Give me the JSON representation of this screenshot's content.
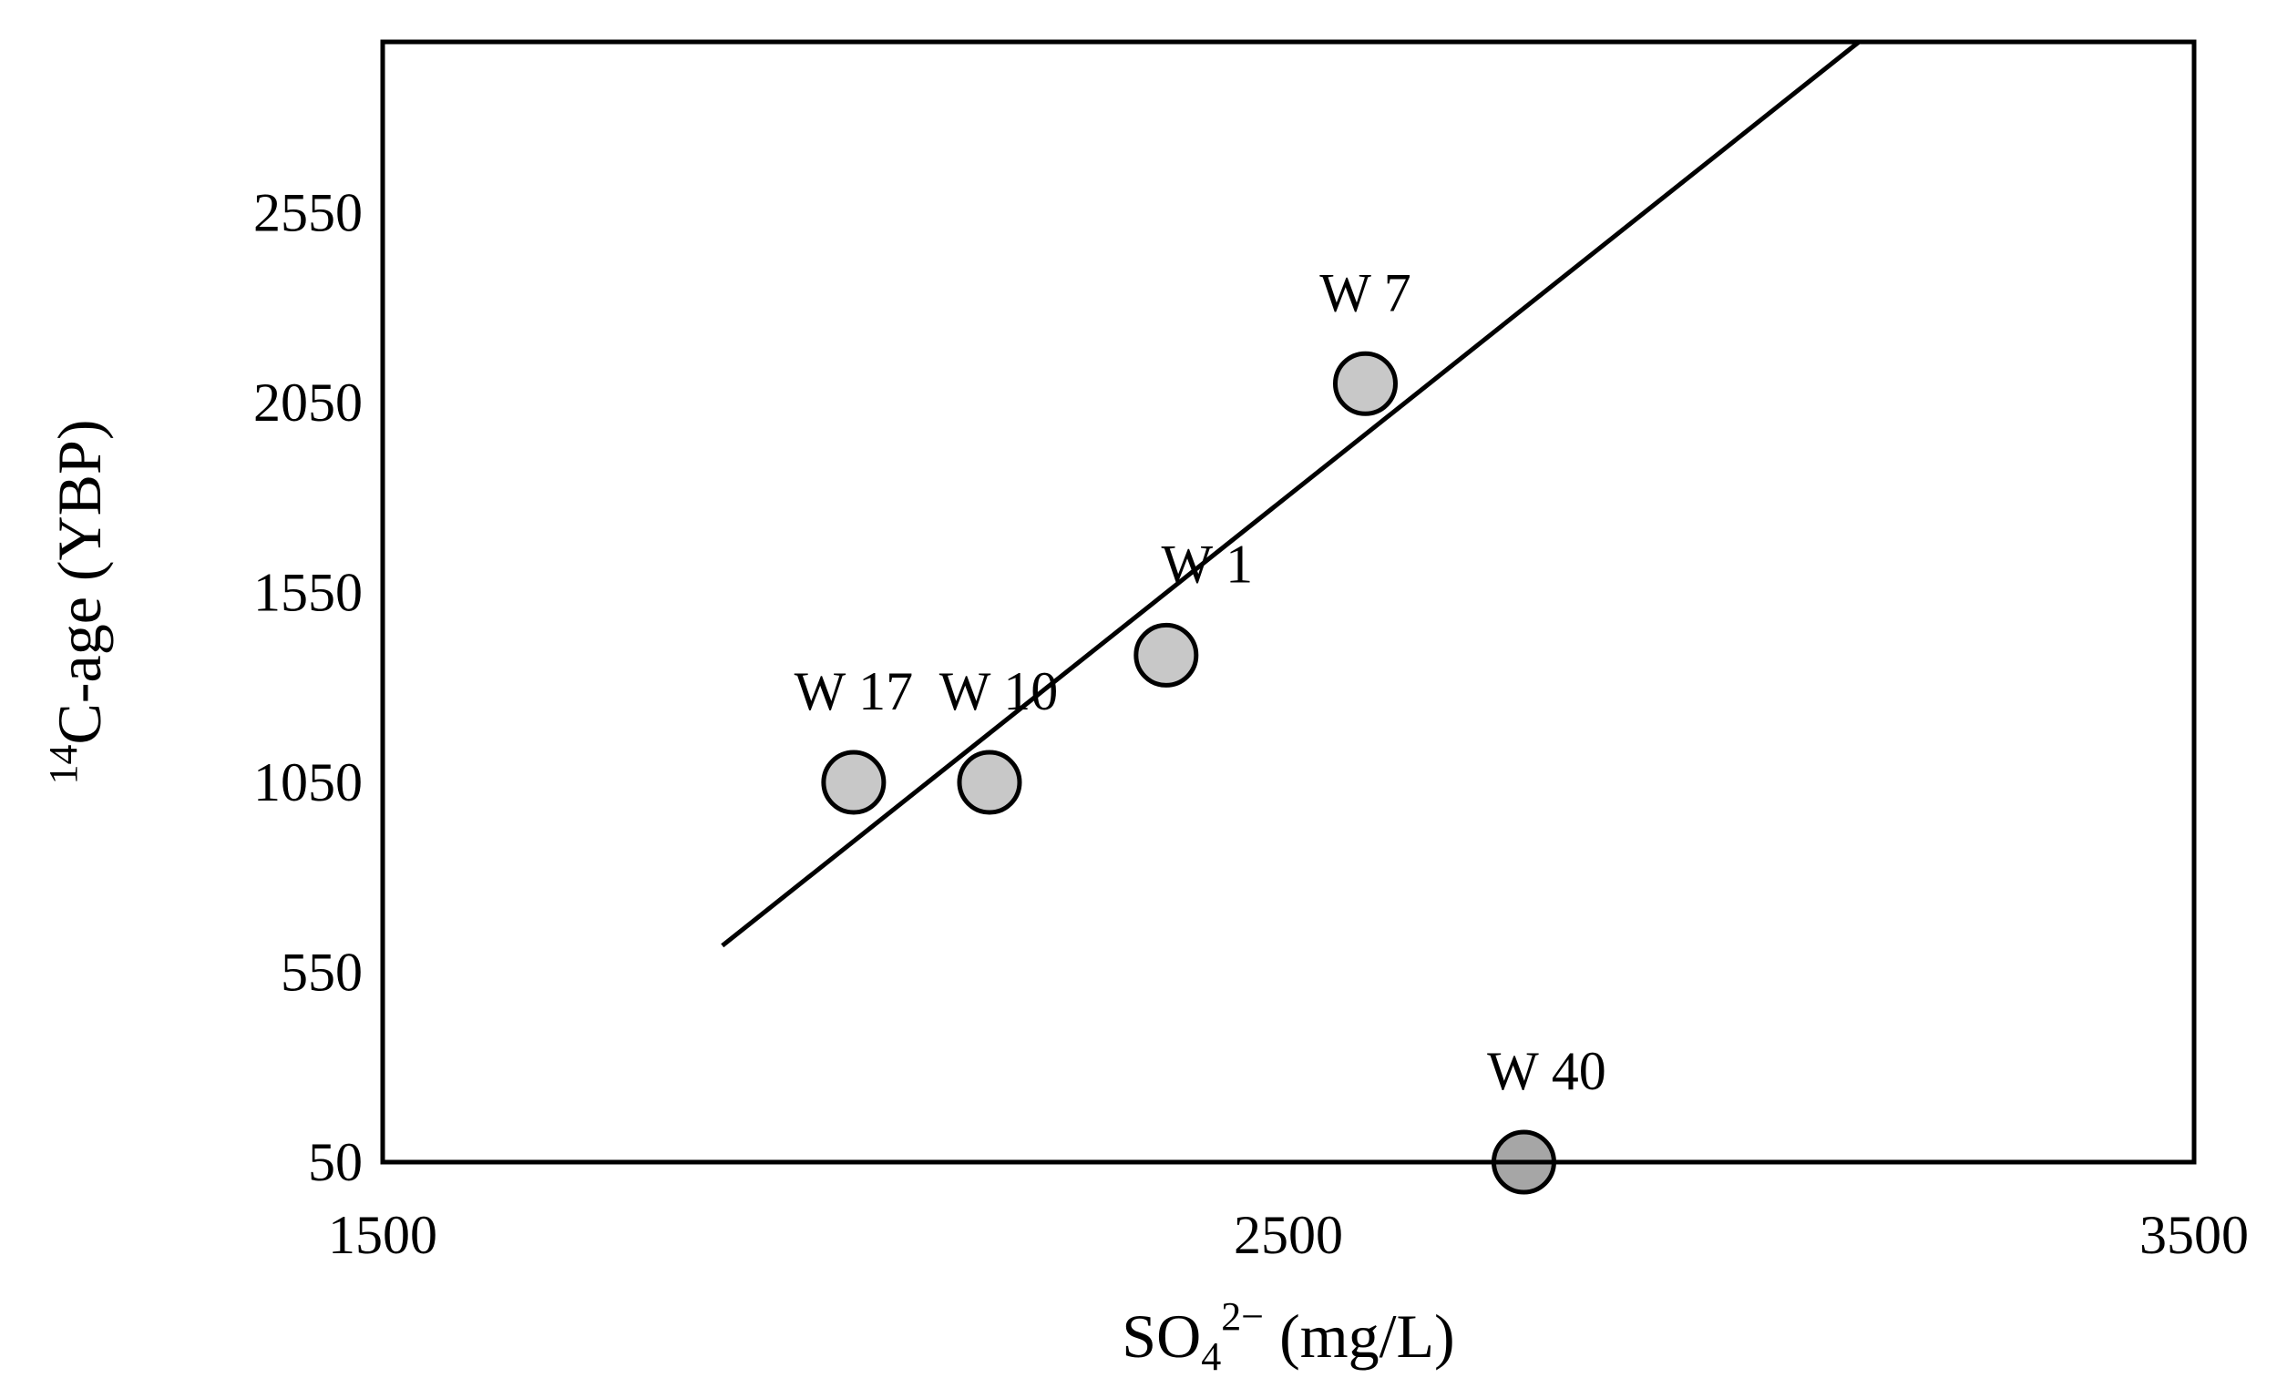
{
  "chart_data": {
    "type": "scatter",
    "title": "",
    "xlabel": "SO₄²⁻ (mg/L)",
    "xlabel_parts": {
      "base": "SO",
      "sub": "4",
      "sup": "2−",
      "rest": " (mg/L)"
    },
    "ylabel": "¹⁴C-age (YBP)",
    "ylabel_parts": {
      "sup": "14",
      "rest": "C-age (YBP)"
    },
    "xlim": [
      1500,
      3500
    ],
    "ylim": [
      50,
      3000
    ],
    "xticks": [
      1500,
      2500,
      3500
    ],
    "yticks": [
      50,
      550,
      1050,
      1550,
      2050,
      2550
    ],
    "grid": false,
    "legend": "none",
    "points": [
      {
        "label": "W 17",
        "x": 2020,
        "y": 1050,
        "color": "#c8c8c8"
      },
      {
        "label": "W 10",
        "x": 2170,
        "y": 1050,
        "color": "#c8c8c8"
      },
      {
        "label": "W 1",
        "x": 2365,
        "y": 1385,
        "color": "#c8c8c8"
      },
      {
        "label": "W 7",
        "x": 2585,
        "y": 2100,
        "color": "#c8c8c8"
      },
      {
        "label": "W 40",
        "x": 2760,
        "y": 50,
        "color": "#a6a6a6"
      }
    ],
    "trendline": {
      "x": [
        1875,
        3130
      ],
      "y": [
        620,
        3000
      ]
    }
  }
}
